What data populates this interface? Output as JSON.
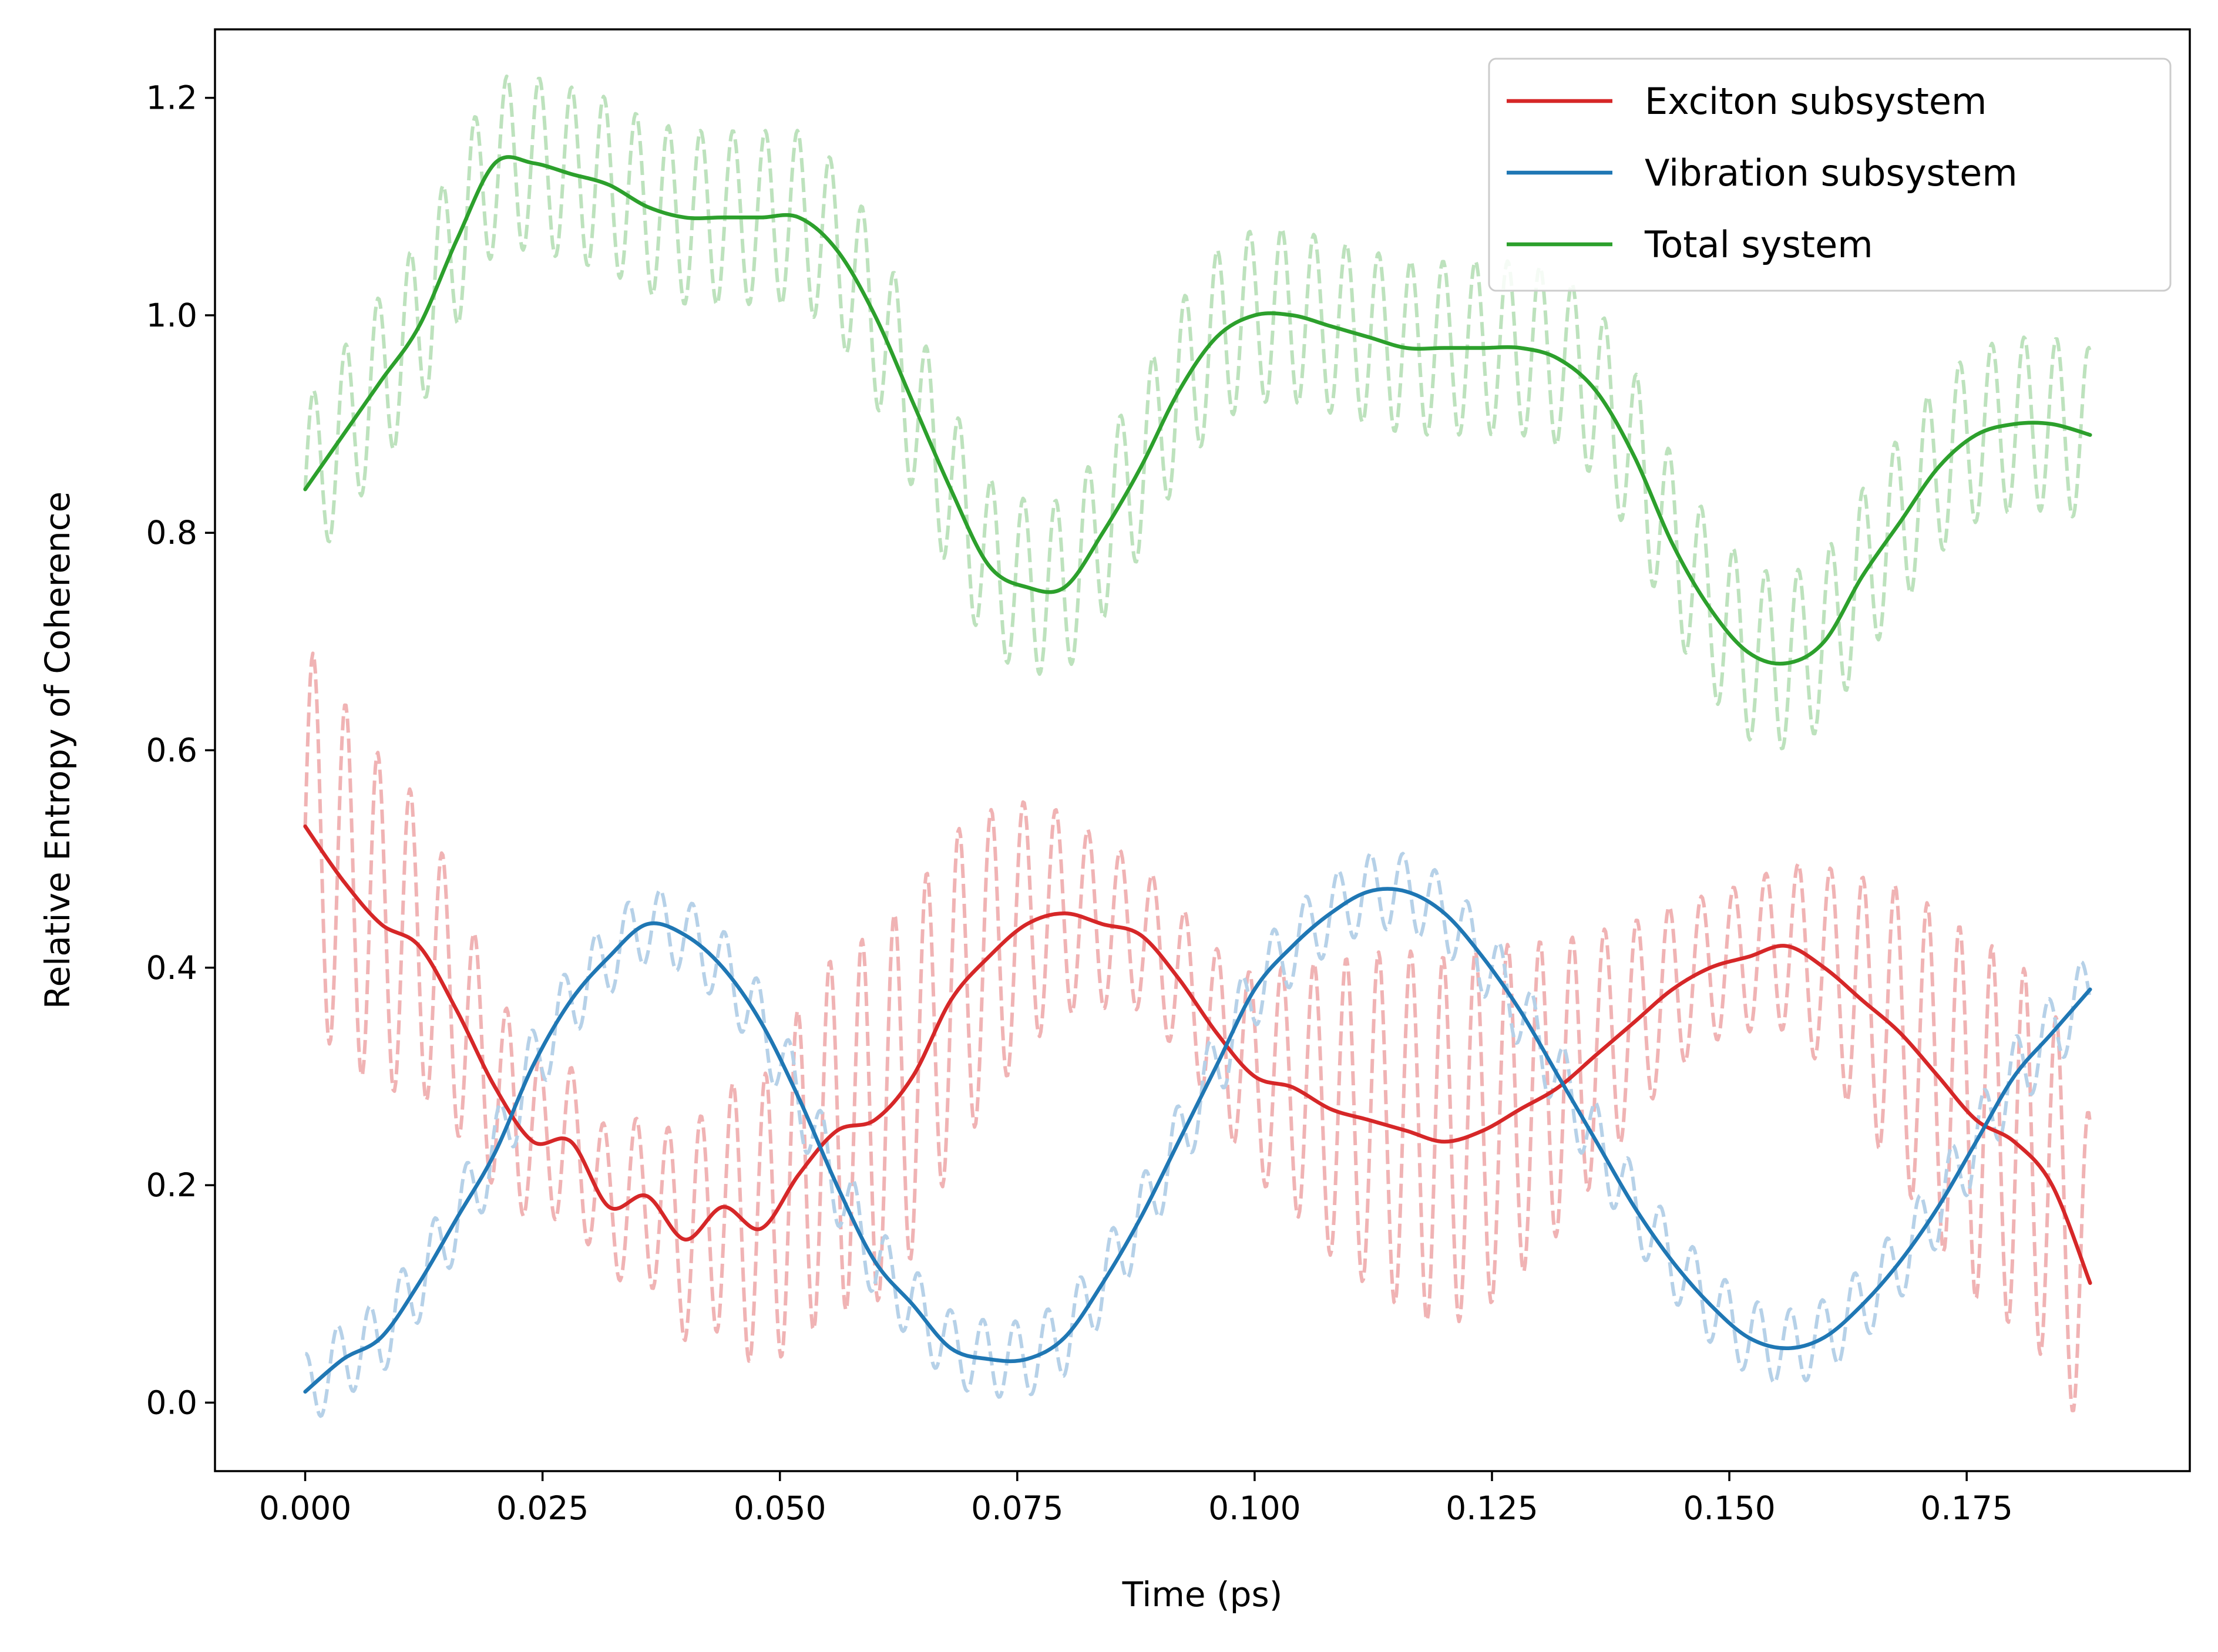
{
  "chart_data": {
    "type": "line",
    "title": "",
    "xlabel": "Time (ps)",
    "ylabel": "Relative Entropy of Coherence",
    "xlim": [
      -0.0095,
      0.1985
    ],
    "ylim": [
      -0.063,
      1.263
    ],
    "xticks": [
      0.0,
      0.025,
      0.05,
      0.075,
      0.1,
      0.125,
      0.15,
      0.175
    ],
    "xtick_labels": [
      "0.000",
      "0.025",
      "0.050",
      "0.075",
      "0.100",
      "0.125",
      "0.150",
      "0.175"
    ],
    "yticks": [
      0.0,
      0.2,
      0.4,
      0.6,
      0.8,
      1.0,
      1.2
    ],
    "ytick_labels": [
      "0.0",
      "0.2",
      "0.4",
      "0.6",
      "0.8",
      "1.0",
      "1.2"
    ],
    "grid": false,
    "legend_position": "top-right",
    "x": [
      0.0,
      0.004,
      0.008,
      0.012,
      0.016,
      0.02,
      0.024,
      0.028,
      0.032,
      0.036,
      0.04,
      0.044,
      0.048,
      0.052,
      0.056,
      0.06,
      0.064,
      0.068,
      0.072,
      0.076,
      0.08,
      0.084,
      0.088,
      0.092,
      0.096,
      0.1,
      0.104,
      0.108,
      0.112,
      0.116,
      0.12,
      0.124,
      0.128,
      0.132,
      0.136,
      0.14,
      0.144,
      0.148,
      0.152,
      0.156,
      0.16,
      0.164,
      0.168,
      0.172,
      0.176,
      0.18,
      0.184,
      0.188
    ],
    "series": [
      {
        "name": "Exciton subsystem",
        "color": "#d62728",
        "style": "solid",
        "values": [
          0.53,
          0.48,
          0.44,
          0.42,
          0.36,
          0.29,
          0.24,
          0.24,
          0.18,
          0.19,
          0.15,
          0.18,
          0.16,
          0.21,
          0.25,
          0.26,
          0.3,
          0.37,
          0.41,
          0.44,
          0.45,
          0.44,
          0.43,
          0.39,
          0.34,
          0.3,
          0.29,
          0.27,
          0.26,
          0.25,
          0.24,
          0.25,
          0.27,
          0.29,
          0.32,
          0.35,
          0.38,
          0.4,
          0.41,
          0.42,
          0.4,
          0.37,
          0.34,
          0.3,
          0.26,
          0.24,
          0.2,
          0.11
        ]
      },
      {
        "name": "Vibration subsystem",
        "color": "#1f77b4",
        "style": "solid",
        "values": [
          0.01,
          0.04,
          0.06,
          0.11,
          0.17,
          0.23,
          0.31,
          0.37,
          0.41,
          0.44,
          0.43,
          0.4,
          0.35,
          0.28,
          0.2,
          0.13,
          0.09,
          0.05,
          0.04,
          0.04,
          0.06,
          0.11,
          0.17,
          0.24,
          0.31,
          0.38,
          0.42,
          0.45,
          0.47,
          0.47,
          0.45,
          0.41,
          0.36,
          0.3,
          0.24,
          0.18,
          0.13,
          0.09,
          0.06,
          0.05,
          0.06,
          0.09,
          0.13,
          0.18,
          0.24,
          0.3,
          0.34,
          0.38
        ]
      },
      {
        "name": "Total system",
        "color": "#2ca02c",
        "style": "solid",
        "values": [
          0.84,
          0.89,
          0.94,
          0.99,
          1.07,
          1.14,
          1.14,
          1.13,
          1.12,
          1.1,
          1.09,
          1.09,
          1.09,
          1.09,
          1.06,
          1.0,
          0.92,
          0.84,
          0.77,
          0.75,
          0.75,
          0.8,
          0.86,
          0.93,
          0.98,
          1.0,
          1.0,
          0.99,
          0.98,
          0.97,
          0.97,
          0.97,
          0.97,
          0.96,
          0.93,
          0.87,
          0.79,
          0.73,
          0.69,
          0.68,
          0.7,
          0.76,
          0.81,
          0.86,
          0.89,
          0.9,
          0.9,
          0.89
        ]
      }
    ]
  }
}
